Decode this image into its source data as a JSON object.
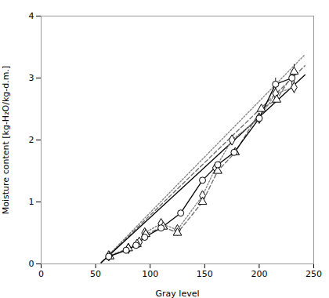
{
  "chart_data": {
    "type": "line",
    "xlabel": "Gray level",
    "ylabel": "Moisture content [kg-H₂O/kg-d.m.]",
    "xlim": [
      0,
      250
    ],
    "ylim": [
      0,
      4
    ],
    "xticks": [
      0,
      50,
      100,
      150,
      200,
      250
    ],
    "yticks": [
      0,
      1,
      2,
      3,
      4
    ],
    "series": [
      {
        "color": "gray",
        "line_style": "dotted",
        "marker": "diamond",
        "x": [
          62,
          80,
          90,
          95,
          110,
          125,
          148,
          160,
          175,
          200,
          215,
          232
        ],
        "values": [
          0.13,
          0.25,
          0.35,
          0.5,
          0.65,
          0.55,
          1.1,
          1.55,
          2.0,
          2.35,
          2.75,
          2.85
        ],
        "yerr": [
          0.0,
          0.0,
          0.0,
          0.0,
          0.0,
          0.05,
          0.0,
          0.0,
          0.0,
          0.0,
          0.08,
          0.1
        ],
        "fit": {
          "x": [
            55,
            242
          ],
          "y": [
            0.02,
            3.38
          ]
        }
      },
      {
        "color": "dimgray",
        "line_style": "dashed",
        "marker": "triangle",
        "x": [
          63,
          80,
          88,
          96,
          112,
          125,
          148,
          162,
          178,
          202,
          216,
          232
        ],
        "values": [
          0.12,
          0.25,
          0.32,
          0.48,
          0.6,
          0.5,
          1.0,
          1.5,
          1.8,
          2.5,
          2.65,
          3.1
        ],
        "yerr": [
          0.0,
          0.0,
          0.0,
          0.0,
          0.0,
          0.05,
          0.0,
          0.0,
          0.0,
          0.0,
          0.0,
          0.12
        ],
        "fit": {
          "x": [
            55,
            242
          ],
          "y": [
            0.02,
            3.2
          ]
        }
      },
      {
        "color": "black",
        "line_style": "solid",
        "marker": "circle",
        "x": [
          62,
          78,
          87,
          95,
          110,
          128,
          148,
          162,
          177,
          200,
          215,
          230
        ],
        "values": [
          0.12,
          0.22,
          0.3,
          0.43,
          0.58,
          0.82,
          1.35,
          1.6,
          1.8,
          2.35,
          2.9,
          3.0
        ],
        "yerr": [
          0.0,
          0.0,
          0.0,
          0.0,
          0.0,
          0.0,
          0.0,
          0.0,
          0.05,
          0.07,
          0.1,
          0.12
        ],
        "fit": {
          "x": [
            55,
            242
          ],
          "y": [
            0.02,
            3.05
          ]
        }
      }
    ]
  }
}
